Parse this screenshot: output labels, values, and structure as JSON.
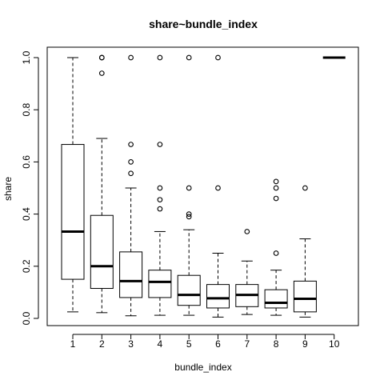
{
  "chart_data": {
    "type": "boxplot",
    "title": "share~bundle_index",
    "xlabel": "bundle_index",
    "ylabel": "share",
    "categories": [
      "1",
      "2",
      "3",
      "4",
      "5",
      "6",
      "7",
      "8",
      "9",
      "10"
    ],
    "ylim": [
      0,
      1
    ],
    "yticks": [
      "0.0",
      "0.2",
      "0.4",
      "0.6",
      "0.8",
      "1.0"
    ],
    "ytick_values": [
      0,
      0.2,
      0.4,
      0.6,
      0.8,
      1.0
    ],
    "grid": false,
    "boxes": [
      {
        "category": "1",
        "whisker_low": 0.025,
        "q1": 0.15,
        "median": 0.333,
        "q3": 0.667,
        "whisker_high": 1.0,
        "outliers": []
      },
      {
        "category": "2",
        "whisker_low": 0.022,
        "q1": 0.115,
        "median": 0.2,
        "q3": 0.395,
        "whisker_high": 0.69,
        "outliers": [
          0.94,
          1.0,
          1.0
        ]
      },
      {
        "category": "3",
        "whisker_low": 0.01,
        "q1": 0.08,
        "median": 0.143,
        "q3": 0.255,
        "whisker_high": 0.5,
        "outliers": [
          0.556,
          0.6,
          0.667,
          1.0
        ]
      },
      {
        "category": "4",
        "whisker_low": 0.012,
        "q1": 0.08,
        "median": 0.14,
        "q3": 0.185,
        "whisker_high": 0.333,
        "outliers": [
          0.42,
          0.455,
          0.5,
          0.667,
          1.0
        ]
      },
      {
        "category": "5",
        "whisker_low": 0.012,
        "q1": 0.05,
        "median": 0.09,
        "q3": 0.165,
        "whisker_high": 0.34,
        "outliers": [
          0.39,
          0.4,
          0.5,
          1.0
        ]
      },
      {
        "category": "6",
        "whisker_low": 0.005,
        "q1": 0.04,
        "median": 0.077,
        "q3": 0.13,
        "whisker_high": 0.25,
        "outliers": [
          0.5,
          1.0
        ]
      },
      {
        "category": "7",
        "whisker_low": 0.015,
        "q1": 0.045,
        "median": 0.09,
        "q3": 0.13,
        "whisker_high": 0.22,
        "outliers": [
          0.333
        ]
      },
      {
        "category": "8",
        "whisker_low": 0.012,
        "q1": 0.04,
        "median": 0.06,
        "q3": 0.11,
        "whisker_high": 0.185,
        "outliers": [
          0.25,
          0.46,
          0.5,
          0.525
        ]
      },
      {
        "category": "9",
        "whisker_low": 0.005,
        "q1": 0.025,
        "median": 0.075,
        "q3": 0.143,
        "whisker_high": 0.305,
        "outliers": [
          0.5
        ]
      },
      {
        "category": "10",
        "whisker_low": 1.0,
        "q1": 1.0,
        "median": 1.0,
        "q3": 1.0,
        "whisker_high": 1.0,
        "outliers": []
      }
    ]
  }
}
